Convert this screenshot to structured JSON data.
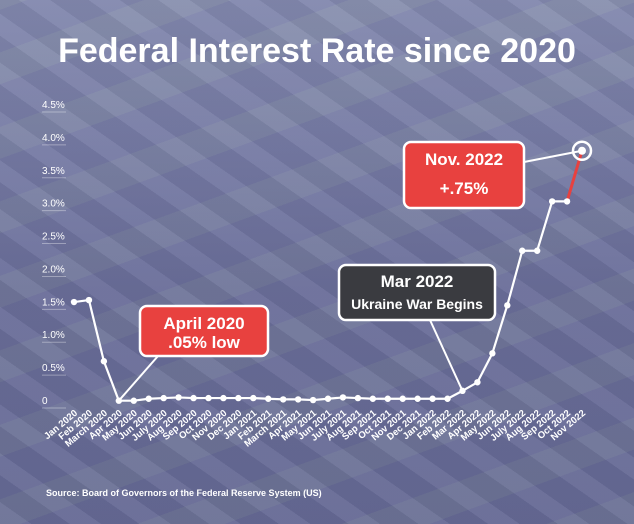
{
  "chart_data": {
    "type": "line",
    "title": "Federal Interest Rate since 2020",
    "source": "Source: Board of Governors of the Federal Reserve System (US)",
    "ylim": [
      0,
      4.5
    ],
    "y_ticks": [
      {
        "value": 0,
        "label": "0"
      },
      {
        "value": 0.5,
        "label": "0.5%"
      },
      {
        "value": 1.0,
        "label": "1.0%"
      },
      {
        "value": 1.5,
        "label": "1.5%"
      },
      {
        "value": 2.0,
        "label": "2.0%"
      },
      {
        "value": 2.5,
        "label": "2.5%"
      },
      {
        "value": 3.0,
        "label": "3.0%"
      },
      {
        "value": 3.5,
        "label": "3.5%"
      },
      {
        "value": 4.0,
        "label": "4.0%"
      },
      {
        "value": 4.5,
        "label": "4.5%"
      }
    ],
    "categories": [
      "Jan 2020",
      "Feb 2020",
      "March 2020",
      "Apr 2020",
      "May 2020",
      "Jun 2020",
      "July 2020",
      "Aug 2020",
      "Sep 2020",
      "Oct 2020",
      "Nov 2020",
      "Dec 2020",
      "Jan 2021",
      "Feb 2021",
      "March 2021",
      "Apr 2021",
      "May 2021",
      "Jun 2021",
      "July 2021",
      "Aug 2021",
      "Sep 2021",
      "Oct 2021",
      "Nov 2021",
      "Dec 2021",
      "Jan 2022",
      "Feb 2022",
      "Mar 2022",
      "Apr 2022",
      "May 2022",
      "Jun 2022",
      "July 2022",
      "Aug 2022",
      "Sep 2022",
      "Oct 2022",
      "Nov 2022"
    ],
    "values": [
      1.55,
      1.58,
      0.65,
      0.05,
      0.05,
      0.08,
      0.09,
      0.1,
      0.09,
      0.09,
      0.09,
      0.09,
      0.09,
      0.08,
      0.07,
      0.07,
      0.06,
      0.08,
      0.1,
      0.09,
      0.08,
      0.08,
      0.08,
      0.08,
      0.08,
      0.08,
      0.2,
      0.33,
      0.77,
      1.5,
      2.33,
      2.33,
      3.08,
      3.08,
      3.85
    ],
    "highlight_last": true,
    "annotations": [
      {
        "line1": "April 2020",
        "line2": ".05% low",
        "style": "red"
      },
      {
        "line1": "Mar 2022",
        "line2": "Ukraine War Begins",
        "style": "dark"
      },
      {
        "line1": "Nov. 2022",
        "line2": "+.75%",
        "style": "red"
      }
    ]
  }
}
